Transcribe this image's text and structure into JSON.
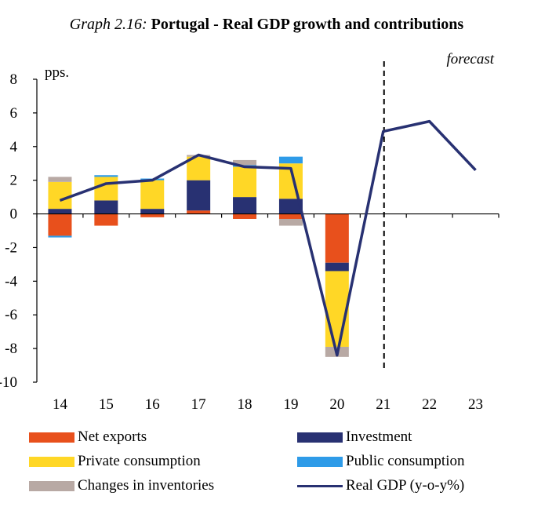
{
  "title": {
    "label": "Graph 2.16:",
    "text": "Portugal - Real GDP growth and contributions"
  },
  "chart_data": {
    "type": "bar",
    "subtype": "stacked bar with line",
    "unit_label": "pps.",
    "forecast_label": "forecast",
    "categories": [
      "14",
      "15",
      "16",
      "17",
      "18",
      "19",
      "20",
      "21",
      "22",
      "23"
    ],
    "ylim": [
      -10,
      8
    ],
    "yticks": [
      8,
      6,
      4,
      2,
      0,
      -2,
      -4,
      -6,
      -8,
      -10
    ],
    "forecast_after_index": 7,
    "series": [
      {
        "name": "Net exports",
        "type": "bar",
        "color": "#E8501C",
        "values": [
          -1.3,
          -0.7,
          -0.2,
          0.2,
          -0.3,
          -0.3,
          -2.9,
          null,
          null,
          null
        ]
      },
      {
        "name": "Investment",
        "type": "bar",
        "color": "#283172",
        "values": [
          0.3,
          0.8,
          0.3,
          1.8,
          1.0,
          0.9,
          -0.5,
          null,
          null,
          null
        ]
      },
      {
        "name": "Private consumption",
        "type": "bar",
        "color": "#FFD726",
        "values": [
          1.6,
          1.4,
          1.7,
          1.4,
          1.8,
          2.1,
          -4.5,
          null,
          null,
          null
        ]
      },
      {
        "name": "Public consumption",
        "type": "bar",
        "color": "#2E9BE8",
        "values": [
          -0.1,
          0.1,
          0.1,
          0.0,
          0.1,
          0.4,
          0.0,
          null,
          null,
          null
        ]
      },
      {
        "name": "Changes in inventories",
        "type": "bar",
        "color": "#B8A9A4",
        "values": [
          0.3,
          0.0,
          0.0,
          0.1,
          0.3,
          -0.4,
          -0.6,
          null,
          null,
          null
        ]
      },
      {
        "name": "Real GDP (y-o-y%)",
        "type": "line",
        "color": "#283172",
        "values": [
          0.8,
          1.8,
          2.0,
          3.5,
          2.8,
          2.7,
          -8.4,
          4.9,
          5.5,
          2.6
        ]
      }
    ],
    "legend": {
      "left": [
        "Net exports",
        "Private consumption",
        "Changes in inventories"
      ],
      "right": [
        "Investment",
        "Public consumption",
        "Real GDP (y-o-y%)"
      ]
    }
  }
}
